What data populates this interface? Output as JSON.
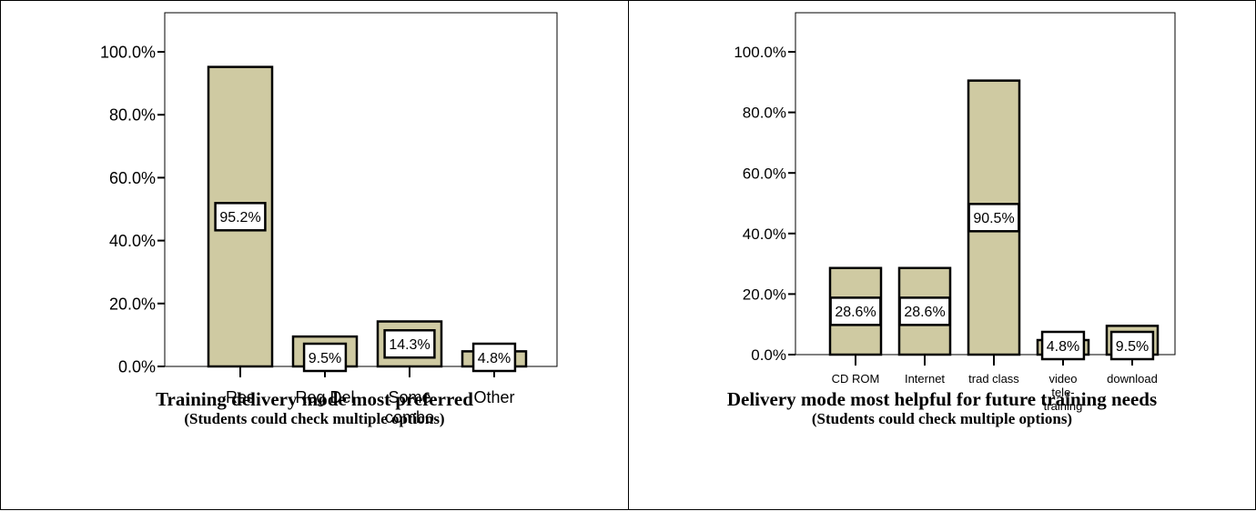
{
  "chart_data": [
    {
      "type": "bar",
      "title": "Training delivery mode most preferred",
      "subtitle": "(Students could check multiple options)",
      "categories": [
        "Res",
        "Reg Del",
        "Some\ncombo",
        "Other"
      ],
      "values": [
        95.2,
        9.5,
        14.3,
        4.8
      ],
      "value_labels": [
        "95.2%",
        "9.5%",
        "14.3%",
        "4.8%"
      ],
      "yticks": [
        "0.0%",
        "20.0%",
        "40.0%",
        "60.0%",
        "80.0%",
        "100.0%"
      ],
      "ylim": [
        0,
        100
      ],
      "xlabel": "",
      "ylabel": "",
      "grid": false
    },
    {
      "type": "bar",
      "title": "Delivery mode most helpful for future training needs",
      "subtitle": "(Students could check multiple options)",
      "categories": [
        "CD ROM",
        "Internet",
        "trad class",
        "video\ntele-\ntraining",
        "download"
      ],
      "values": [
        28.6,
        28.6,
        90.5,
        4.8,
        9.5
      ],
      "value_labels": [
        "28.6%",
        "28.6%",
        "90.5%",
        "4.8%",
        "9.5%"
      ],
      "yticks": [
        "0.0%",
        "20.0%",
        "40.0%",
        "60.0%",
        "80.0%",
        "100.0%"
      ],
      "ylim": [
        0,
        100
      ],
      "xlabel": "",
      "ylabel": "",
      "grid": false
    }
  ],
  "colors": {
    "bar_fill": "#CFCAA2",
    "bar_stroke": "#000000",
    "label_fill": "#FFFFFF"
  }
}
